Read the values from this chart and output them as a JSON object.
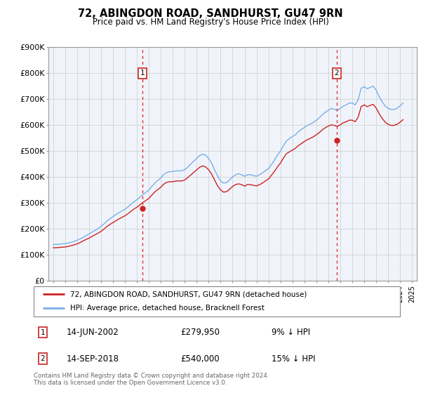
{
  "title": "72, ABINGDON ROAD, SANDHURST, GU47 9RN",
  "subtitle": "Price paid vs. HM Land Registry's House Price Index (HPI)",
  "bg_color": "#f0f4fa",
  "plot_bg_color": "#f0f4fa",
  "ylim": [
    0,
    900000
  ],
  "yticks": [
    0,
    100000,
    200000,
    300000,
    400000,
    500000,
    600000,
    700000,
    800000,
    900000
  ],
  "purchase1_date": 2002.45,
  "purchase1_price": 279950,
  "purchase2_date": 2018.71,
  "purchase2_price": 540000,
  "hpi_color": "#7aaee8",
  "price_color": "#cc2222",
  "legend_label1": "72, ABINGDON ROAD, SANDHURST, GU47 9RN (detached house)",
  "legend_label2": "HPI: Average price, detached house, Bracknell Forest",
  "annotation1_date": "14-JUN-2002",
  "annotation1_price": "£279,950",
  "annotation1_hpi": "9% ↓ HPI",
  "annotation2_date": "14-SEP-2018",
  "annotation2_price": "£540,000",
  "annotation2_hpi": "15% ↓ HPI",
  "footer": "Contains HM Land Registry data © Crown copyright and database right 2024.\nThis data is licensed under the Open Government Licence v3.0.",
  "hpi_data_x": [
    1995.0,
    1995.25,
    1995.5,
    1995.75,
    1996.0,
    1996.25,
    1996.5,
    1996.75,
    1997.0,
    1997.25,
    1997.5,
    1997.75,
    1998.0,
    1998.25,
    1998.5,
    1998.75,
    1999.0,
    1999.25,
    1999.5,
    1999.75,
    2000.0,
    2000.25,
    2000.5,
    2000.75,
    2001.0,
    2001.25,
    2001.5,
    2001.75,
    2002.0,
    2002.25,
    2002.5,
    2002.75,
    2003.0,
    2003.25,
    2003.5,
    2003.75,
    2004.0,
    2004.25,
    2004.5,
    2004.75,
    2005.0,
    2005.25,
    2005.5,
    2005.75,
    2006.0,
    2006.25,
    2006.5,
    2006.75,
    2007.0,
    2007.25,
    2007.5,
    2007.75,
    2008.0,
    2008.25,
    2008.5,
    2008.75,
    2009.0,
    2009.25,
    2009.5,
    2009.75,
    2010.0,
    2010.25,
    2010.5,
    2010.75,
    2011.0,
    2011.25,
    2011.5,
    2011.75,
    2012.0,
    2012.25,
    2012.5,
    2012.75,
    2013.0,
    2013.25,
    2013.5,
    2013.75,
    2014.0,
    2014.25,
    2014.5,
    2014.75,
    2015.0,
    2015.25,
    2015.5,
    2015.75,
    2016.0,
    2016.25,
    2016.5,
    2016.75,
    2017.0,
    2017.25,
    2017.5,
    2017.75,
    2018.0,
    2018.25,
    2018.5,
    2018.75,
    2019.0,
    2019.25,
    2019.5,
    2019.75,
    2020.0,
    2020.25,
    2020.5,
    2020.75,
    2021.0,
    2021.25,
    2021.5,
    2021.75,
    2022.0,
    2022.25,
    2022.5,
    2022.75,
    2023.0,
    2023.25,
    2023.5,
    2023.75,
    2024.0,
    2024.25
  ],
  "hpi_data_y": [
    140000,
    141000,
    141500,
    143000,
    144000,
    146000,
    149000,
    152000,
    157000,
    162000,
    168000,
    175000,
    181000,
    188000,
    195000,
    202000,
    210000,
    220000,
    231000,
    240000,
    248000,
    256000,
    263000,
    270000,
    276000,
    285000,
    295000,
    305000,
    313000,
    322000,
    332000,
    341000,
    350000,
    364000,
    377000,
    387000,
    397000,
    410000,
    418000,
    421000,
    421000,
    424000,
    424000,
    424000,
    429000,
    438000,
    450000,
    461000,
    472000,
    483000,
    488000,
    484000,
    471000,
    453000,
    427000,
    403000,
    385000,
    377000,
    379000,
    389000,
    401000,
    409000,
    413000,
    409000,
    403000,
    409000,
    409000,
    406000,
    403000,
    409000,
    416000,
    425000,
    433000,
    448000,
    465000,
    484000,
    500000,
    521000,
    539000,
    548000,
    556000,
    563000,
    575000,
    583000,
    591000,
    599000,
    604000,
    610000,
    619000,
    628000,
    640000,
    649000,
    657000,
    664000,
    661000,
    657000,
    664000,
    673000,
    678000,
    685000,
    685000,
    678000,
    698000,
    742000,
    748000,
    740000,
    745000,
    750000,
    735000,
    710000,
    690000,
    674000,
    665000,
    660000,
    660000,
    665000,
    674000,
    685000
  ],
  "price_data_x": [
    1995.0,
    1995.25,
    1995.5,
    1995.75,
    1996.0,
    1996.25,
    1996.5,
    1996.75,
    1997.0,
    1997.25,
    1997.5,
    1997.75,
    1998.0,
    1998.25,
    1998.5,
    1998.75,
    1999.0,
    1999.25,
    1999.5,
    1999.75,
    2000.0,
    2000.25,
    2000.5,
    2000.75,
    2001.0,
    2001.25,
    2001.5,
    2001.75,
    2002.0,
    2002.25,
    2002.5,
    2002.75,
    2003.0,
    2003.25,
    2003.5,
    2003.75,
    2004.0,
    2004.25,
    2004.5,
    2004.75,
    2005.0,
    2005.25,
    2005.5,
    2005.75,
    2006.0,
    2006.25,
    2006.5,
    2006.75,
    2007.0,
    2007.25,
    2007.5,
    2007.75,
    2008.0,
    2008.25,
    2008.5,
    2008.75,
    2009.0,
    2009.25,
    2009.5,
    2009.75,
    2010.0,
    2010.25,
    2010.5,
    2010.75,
    2011.0,
    2011.25,
    2011.5,
    2011.75,
    2012.0,
    2012.25,
    2012.5,
    2012.75,
    2013.0,
    2013.25,
    2013.5,
    2013.75,
    2014.0,
    2014.25,
    2014.5,
    2014.75,
    2015.0,
    2015.25,
    2015.5,
    2015.75,
    2016.0,
    2016.25,
    2016.5,
    2016.75,
    2017.0,
    2017.25,
    2017.5,
    2017.75,
    2018.0,
    2018.25,
    2018.5,
    2018.75,
    2019.0,
    2019.25,
    2019.5,
    2019.75,
    2020.0,
    2020.25,
    2020.5,
    2020.75,
    2021.0,
    2021.25,
    2021.5,
    2021.75,
    2022.0,
    2022.25,
    2022.5,
    2022.75,
    2023.0,
    2023.25,
    2023.5,
    2023.75,
    2024.0,
    2024.25
  ],
  "price_data_y": [
    128000,
    128000,
    129000,
    130000,
    131000,
    133000,
    136000,
    139000,
    143000,
    148000,
    154000,
    160000,
    165000,
    172000,
    178000,
    184000,
    191000,
    200000,
    210000,
    218000,
    225000,
    232000,
    239000,
    245000,
    251000,
    259000,
    268000,
    277000,
    284000,
    293000,
    302000,
    310000,
    318000,
    331000,
    343000,
    352000,
    361000,
    373000,
    380000,
    382000,
    382000,
    385000,
    385000,
    385000,
    389000,
    398000,
    408000,
    418000,
    428000,
    438000,
    443000,
    439000,
    428000,
    411000,
    388000,
    366000,
    350000,
    342000,
    344000,
    353000,
    364000,
    371000,
    374000,
    371000,
    365000,
    371000,
    371000,
    368000,
    366000,
    371000,
    377000,
    385000,
    393000,
    407000,
    422000,
    439000,
    454000,
    473000,
    490000,
    497000,
    504000,
    511000,
    521000,
    529000,
    537000,
    544000,
    549000,
    555000,
    563000,
    571000,
    582000,
    590000,
    596000,
    601000,
    599000,
    595000,
    601000,
    609000,
    613000,
    619000,
    619000,
    613000,
    631000,
    671000,
    678000,
    671000,
    676000,
    680000,
    666000,
    644000,
    626000,
    612000,
    603000,
    599000,
    599000,
    603000,
    611000,
    621000
  ]
}
